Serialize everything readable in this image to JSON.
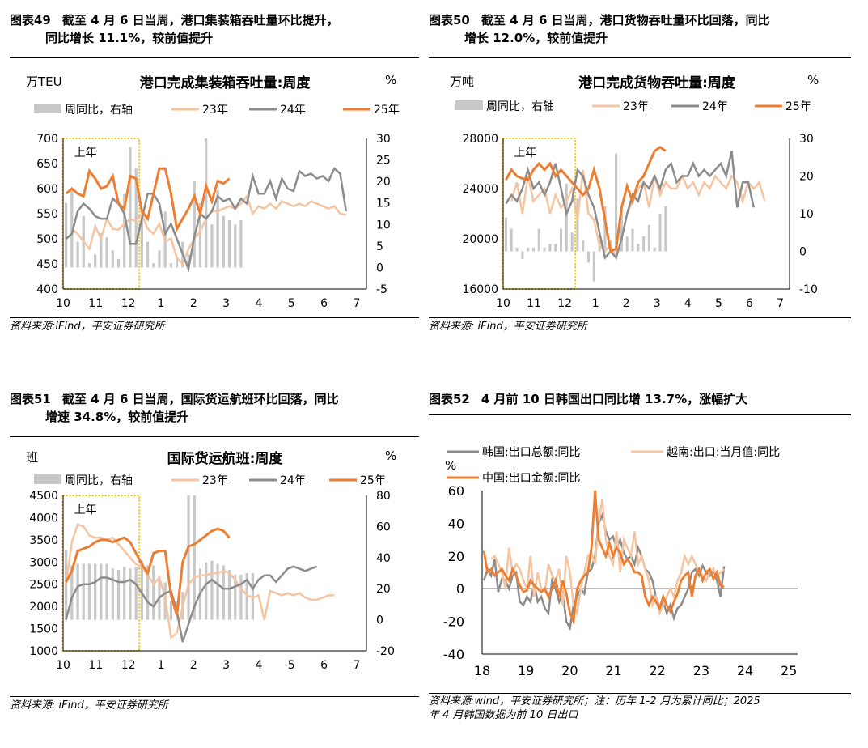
{
  "panels": [
    {
      "fig_no": "图表49",
      "title_line1": "截至 4 月 6 日当周，港口集装箱吞吐量环比提升，",
      "title_line2": "同比增长 11.1%，较前值提升",
      "source": "资料来源:iFind，平安证券研究所"
    },
    {
      "fig_no": "图表50",
      "title_line1": "截至 4 月 6 日当周，港口货物吞吐量环比回落，同比",
      "title_line2": "增长 12.0%，较前值提升",
      "source": "资料来源: iFind，平安证券研究所"
    },
    {
      "fig_no": "图表51",
      "title_line1": "截至 4 月 6 日当周，国际货运航班环比回落，同比",
      "title_line2": "增速 34.8%，较前值提升",
      "source": "资料来源: iFind，平安证券研究所"
    },
    {
      "fig_no": "图表52",
      "title_line1": "4 月前 10 日韩国出口同比增 13.7%，涨幅扩大",
      "title_line2": "",
      "source": "资料来源:wind，平安证券研究所；注：历年 1-2 月为累计同比；2025",
      "source_line2": "年 4 月韩国数据为前 10 日出口"
    }
  ],
  "colors": {
    "bar": "#c8c8c8",
    "y23": "#f5c4a1",
    "y24": "#8c8c8c",
    "y25": "#ed7d31",
    "highlight": "#f2c200"
  },
  "chart_data": [
    {
      "type": "line",
      "title": "港口完成集装箱吞吐量:周度",
      "ylabel": "万TEU",
      "y2label": "%",
      "ylim": [
        400,
        700
      ],
      "yticks": [
        400,
        450,
        500,
        550,
        600,
        650,
        700
      ],
      "y2lim": [
        -5,
        30
      ],
      "y2ticks": [
        -5,
        0,
        5,
        10,
        15,
        20,
        25,
        30
      ],
      "x_ticks": [
        "10",
        "11",
        "12",
        "1",
        "2",
        "3",
        "4",
        "5",
        "6",
        "7"
      ],
      "annotation": "上年",
      "highlight_weeks": [
        0,
        12
      ],
      "legend": [
        "周同比，右轴",
        "23年",
        "24年",
        "25年"
      ],
      "bars_yoy": [
        15,
        18,
        6,
        12,
        1,
        3,
        8,
        7,
        4,
        2,
        17,
        28,
        23,
        13,
        6,
        1,
        4,
        13,
        1,
        2,
        6,
        3,
        20,
        15,
        30,
        10,
        18,
        12,
        11,
        10,
        11
      ],
      "s23": [
        null,
        520,
        510,
        495,
        480,
        525,
        500,
        540,
        520,
        518,
        530,
        540,
        535,
        550,
        520,
        510,
        530,
        495,
        500,
        462,
        450,
        480,
        500,
        515,
        540,
        555,
        555,
        560,
        565,
        560,
        570,
        585,
        550,
        565,
        560,
        570,
        560,
        575,
        570,
        565,
        570,
        565,
        575,
        570,
        565,
        560,
        565,
        550,
        548
      ],
      "s24": [
        500,
        510,
        555,
        570,
        560,
        545,
        540,
        540,
        580,
        570,
        550,
        490,
        490,
        540,
        590,
        590,
        570,
        510,
        530,
        500,
        470,
        440,
        505,
        550,
        540,
        555,
        585,
        575,
        580,
        560,
        580,
        570,
        625,
        590,
        590,
        615,
        580,
        620,
        600,
        595,
        635,
        625,
        630,
        620,
        625,
        615,
        640,
        630,
        555
      ],
      "s25": [
        590,
        600,
        590,
        585,
        635,
        620,
        600,
        605,
        625,
        570,
        560,
        625,
        620,
        555,
        540,
        590,
        640,
        640,
        590,
        520,
        540,
        560,
        585,
        550,
        605,
        575,
        615,
        610,
        620
      ]
    },
    {
      "type": "line",
      "title": "港口完成货物吞吐量:周度",
      "ylabel": "万吨",
      "y2label": "%",
      "ylim": [
        16000,
        28000
      ],
      "yticks": [
        16000,
        20000,
        24000,
        28000
      ],
      "y2lim": [
        -10,
        30
      ],
      "y2ticks": [
        -10,
        0,
        10,
        20,
        30
      ],
      "x_ticks": [
        "10",
        "11",
        "12",
        "1",
        "2",
        "3",
        "4",
        "5",
        "6",
        "7"
      ],
      "annotation": "上年",
      "highlight_weeks": [
        0,
        12
      ],
      "legend": [
        "周同比，右轴",
        "23年",
        "24年",
        "25年"
      ],
      "bars_yoy": [
        9,
        6,
        1,
        -2,
        1,
        1,
        6,
        1,
        2,
        2,
        6,
        18,
        5,
        14,
        3,
        -3,
        -8,
        3,
        12,
        3,
        26,
        11,
        4,
        6,
        2,
        4,
        7,
        1,
        10,
        12
      ],
      "s23": [
        null,
        23000,
        24500,
        22000,
        25000,
        23000,
        23500,
        24000,
        22000,
        23500,
        22500,
        23000,
        24000,
        21500,
        25500,
        22000,
        21500,
        19500,
        19000,
        19500,
        18500,
        20000,
        22000,
        23000,
        24000,
        24500,
        22500,
        25000,
        23500,
        24500,
        24000,
        24000,
        25000,
        24000,
        24500,
        23500,
        24500,
        24000,
        25000,
        24500,
        24000,
        25000,
        24500,
        23000,
        24500,
        24000,
        24500,
        23000
      ],
      "s24": [
        22800,
        23500,
        23000,
        24000,
        25500,
        24000,
        24500,
        23500,
        24500,
        26000,
        24000,
        22000,
        23000,
        25500,
        25000,
        23500,
        22500,
        20500,
        18500,
        19000,
        18500,
        20000,
        22000,
        23500,
        23000,
        24500,
        24000,
        25000,
        24000,
        25500,
        26000,
        24500,
        25000,
        25000,
        26000,
        25000,
        25500,
        25000,
        25500,
        26000,
        25000,
        27000,
        22500,
        24500,
        24500,
        22500
      ],
      "s25": [
        24700,
        25500,
        25000,
        24800,
        24700,
        25500,
        26000,
        25500,
        26000,
        25000,
        25500,
        25000,
        24500,
        24000,
        23500,
        24000,
        25500,
        24000,
        21500,
        19000,
        19200,
        22500,
        24200,
        23000,
        24500,
        25000,
        26000,
        27000,
        27300,
        27000
      ]
    },
    {
      "type": "line",
      "title": "国际货运航班:周度",
      "ylabel": "班",
      "y2label": "%",
      "ylim": [
        1000,
        4500
      ],
      "yticks": [
        1000,
        1500,
        2000,
        2500,
        3000,
        3500,
        4000,
        4500
      ],
      "y2lim": [
        -20,
        80
      ],
      "y2ticks": [
        -20,
        0,
        20,
        40,
        60,
        80
      ],
      "x_ticks": [
        "10",
        "11",
        "12",
        "1",
        "2",
        "3",
        "4",
        "5",
        "6",
        "7"
      ],
      "annotation": "上年",
      "highlight_weeks": [
        0,
        12
      ],
      "legend": [
        "周同比，右轴",
        "23年",
        "24年",
        "25年"
      ],
      "bars_yoy": [
        45,
        35,
        36,
        36,
        36,
        36,
        36,
        36,
        33,
        32,
        34,
        33,
        34,
        38,
        35,
        35,
        28,
        24,
        12,
        12,
        18,
        80,
        80,
        33,
        37,
        38,
        36,
        35,
        32,
        29,
        29,
        30,
        30
      ],
      "s23": [
        2500,
        3450,
        3850,
        3800,
        3600,
        3550,
        3550,
        3500,
        3550,
        3400,
        3250,
        3100,
        2950,
        2900,
        2700,
        2500,
        2650,
        2200,
        1300,
        1400,
        2000,
        2500,
        2650,
        2700,
        2700,
        2750,
        2750,
        2800,
        2750,
        2600,
        2400,
        2250,
        2200,
        2250,
        1700,
        2350,
        2300,
        2250,
        2300,
        2250,
        2300,
        2200,
        2150,
        2150,
        2200,
        2250,
        2250
      ],
      "s24": [
        1700,
        2200,
        2450,
        2500,
        2500,
        2550,
        2650,
        2650,
        2600,
        2550,
        2550,
        2600,
        2500,
        2300,
        2100,
        2000,
        2200,
        2300,
        2350,
        1900,
        1200,
        1600,
        2000,
        2300,
        2500,
        2600,
        2500,
        2400,
        2400,
        2450,
        2500,
        2600,
        2400,
        2600,
        2700,
        2700,
        2550,
        2700,
        2850,
        2900,
        2850,
        2800,
        2850,
        2900
      ],
      "s25": [
        2550,
        2800,
        3250,
        3300,
        3350,
        3450,
        3500,
        3500,
        3450,
        3500,
        3550,
        3450,
        3200,
        2950,
        2750,
        3200,
        3250,
        3250,
        2250,
        1800,
        3000,
        3350,
        3400,
        3500,
        3600,
        3700,
        3750,
        3700,
        3550
      ]
    },
    {
      "type": "line",
      "ylabel": "%",
      "ylim": [
        -40,
        60
      ],
      "yticks": [
        -40,
        -20,
        0,
        20,
        40,
        60
      ],
      "x_ticks": [
        "18",
        "19",
        "20",
        "21",
        "22",
        "23",
        "24",
        "25"
      ],
      "legend": [
        "韩国:出口总额:同比",
        "越南:出口:当月值:同比",
        "中国:出口金额:同比"
      ],
      "series": [
        {
          "name": "韩国:出口总额:同比",
          "values": [
            5,
            12,
            8,
            18,
            -2,
            6,
            5,
            0,
            8,
            10,
            -8,
            -10,
            -5,
            -8,
            3,
            -8,
            -5,
            -12,
            -15,
            5,
            0,
            -8,
            -3,
            -20,
            -24,
            -10,
            -5,
            0,
            -3,
            10,
            12,
            20,
            40,
            45,
            35,
            30,
            32,
            25,
            30,
            22,
            18,
            20,
            15,
            25,
            20,
            12,
            10,
            5,
            -5,
            -12,
            -8,
            -15,
            -10,
            -18,
            -12,
            -10,
            -5,
            0,
            10,
            12,
            8,
            14,
            10,
            8,
            12,
            5,
            -5,
            13.7
          ]
        },
        {
          "name": "越南:出口:当月值:同比",
          "values": [
            18,
            20,
            15,
            10,
            0,
            25,
            10,
            15,
            12,
            5,
            0,
            20,
            -5,
            10,
            0,
            -2,
            15,
            8,
            5,
            12,
            -10,
            20,
            10,
            -10,
            -15,
            0,
            10,
            20,
            22,
            15,
            40,
            55,
            30,
            20,
            15,
            35,
            10,
            30,
            25,
            20,
            35,
            15,
            20,
            12,
            5,
            -10,
            -5,
            -15,
            -10,
            -5,
            0,
            -5,
            5,
            10,
            20,
            15,
            20,
            15,
            10,
            8,
            5,
            10,
            12,
            8,
            10,
            12
          ]
        },
        {
          "name": "中国:出口金额:同比",
          "values": [
            23,
            10,
            12,
            8,
            10,
            12,
            8,
            5,
            12,
            8,
            2,
            -2,
            -1,
            5,
            2,
            0,
            -2,
            0,
            -5,
            0,
            5,
            -5,
            5,
            -3,
            -15,
            -20,
            0,
            5,
            8,
            10,
            25,
            60,
            30,
            25,
            20,
            28,
            20,
            25,
            22,
            15,
            18,
            15,
            10,
            10,
            8,
            -5,
            -10,
            -5,
            -8,
            -12,
            -5,
            -10,
            -14,
            -8,
            -3,
            5,
            8,
            10,
            -5,
            8,
            12,
            5,
            10,
            12,
            6,
            10,
            2,
            1
          ]
        }
      ]
    }
  ]
}
